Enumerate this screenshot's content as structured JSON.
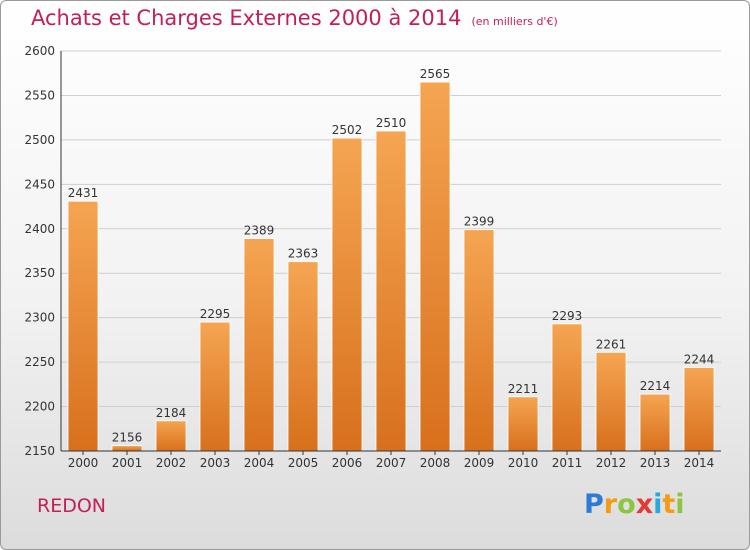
{
  "header": {
    "title": "Achats et Charges Externes 2000 à 2014",
    "unit": "(en milliers d'€)"
  },
  "footer": {
    "city": "REDON",
    "brand": [
      "P",
      "r",
      "o",
      "x",
      "i",
      "t",
      "i"
    ],
    "brand_colors": [
      "#2e7bd6",
      "#f39c12",
      "#8cc63f",
      "#e53935",
      "#29a8e0",
      "#f39c12",
      "#8cc63f"
    ]
  },
  "chart_data": {
    "type": "bar",
    "title": "Achats et Charges Externes 2000 à 2014",
    "subtitle": "(en milliers d'€)",
    "categories": [
      "2000",
      "2001",
      "2002",
      "2003",
      "2004",
      "2005",
      "2006",
      "2007",
      "2008",
      "2009",
      "2010",
      "2011",
      "2012",
      "2013",
      "2014"
    ],
    "values": [
      2431,
      2156,
      2184,
      2295,
      2389,
      2363,
      2502,
      2510,
      2565,
      2399,
      2211,
      2293,
      2261,
      2214,
      2244
    ],
    "ylim": [
      2150,
      2600
    ],
    "yticks": [
      2150,
      2200,
      2250,
      2300,
      2350,
      2400,
      2450,
      2500,
      2550,
      2600
    ],
    "grid": true,
    "legend": "none",
    "bar_color_top": "#f5a552",
    "bar_color_bottom": "#d8701c"
  }
}
